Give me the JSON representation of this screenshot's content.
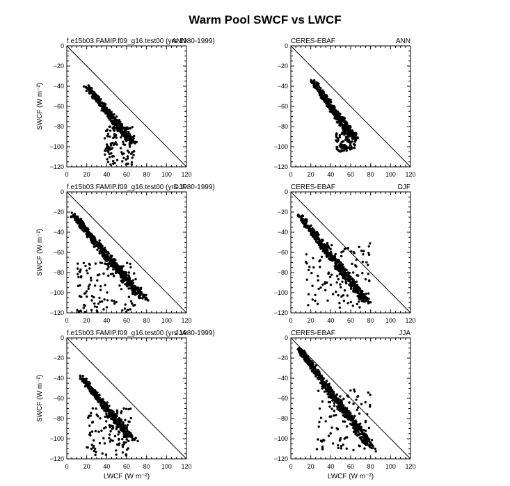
{
  "title": "Warm Pool SWCF vs LWCF",
  "colors": {
    "points": "#000000",
    "frame": "#000000",
    "background": "#ffffff"
  },
  "chart_data": [
    {
      "type": "scatter",
      "left_label": "f.e15b03.FAMIP.f09_g16.test00 (yrs 1980-1999)",
      "right_label": "ANN",
      "xlabel": "",
      "ylabel": "SWCF (W m⁻²)",
      "xlim": [
        0,
        120
      ],
      "ylim": [
        -120,
        0
      ],
      "xticks": [
        0,
        20,
        40,
        60,
        80,
        100,
        120
      ],
      "yticks": [
        0,
        -20,
        -40,
        -60,
        -80,
        -100,
        -120
      ],
      "reference_line": "1:1",
      "grid": false,
      "cloud": {
        "x_from": 20,
        "y_from": -40,
        "x_to": 65,
        "y_to": -95,
        "width": 15,
        "tail_x": [
          38,
          68
        ],
        "tail_y": [
          -80,
          -118
        ],
        "n": 520
      }
    },
    {
      "type": "scatter",
      "left_label": "CERES-EBAF",
      "right_label": "ANN",
      "xlabel": "",
      "ylabel": "",
      "xlim": [
        0,
        120
      ],
      "ylim": [
        -120,
        0
      ],
      "xticks": [
        0,
        20,
        40,
        60,
        80,
        100,
        120
      ],
      "yticks": [
        0,
        -20,
        -40,
        -60,
        -80,
        -100,
        -120
      ],
      "reference_line": "1:1",
      "grid": false,
      "cloud": {
        "x_from": 22,
        "y_from": -35,
        "x_to": 62,
        "y_to": -90,
        "width": 14,
        "tail_x": [
          45,
          65
        ],
        "tail_y": [
          -85,
          -105
        ],
        "n": 480
      }
    },
    {
      "type": "scatter",
      "left_label": "f.e15b03.FAMIP.f09_g16.test00 (yrs 1980-1999)",
      "right_label": "DJF",
      "xlabel": "",
      "ylabel": "SWCF (W m⁻²)",
      "xlim": [
        0,
        120
      ],
      "ylim": [
        -120,
        0
      ],
      "xticks": [
        0,
        20,
        40,
        60,
        80,
        100,
        120
      ],
      "yticks": [
        0,
        -20,
        -40,
        -60,
        -80,
        -100,
        -120
      ],
      "reference_line": "1:1",
      "grid": false,
      "cloud": {
        "x_from": 6,
        "y_from": -22,
        "x_to": 75,
        "y_to": -105,
        "width": 18,
        "tail_x": [
          10,
          70
        ],
        "tail_y": [
          -70,
          -120
        ],
        "n": 650
      }
    },
    {
      "type": "scatter",
      "left_label": "CERES-EBAF",
      "right_label": "DJF",
      "xlabel": "",
      "ylabel": "",
      "xlim": [
        0,
        120
      ],
      "ylim": [
        -120,
        0
      ],
      "xticks": [
        0,
        20,
        40,
        60,
        80,
        100,
        120
      ],
      "yticks": [
        0,
        -20,
        -40,
        -60,
        -80,
        -100,
        -120
      ],
      "reference_line": "1:1",
      "grid": false,
      "cloud": {
        "x_from": 8,
        "y_from": -22,
        "x_to": 75,
        "y_to": -108,
        "width": 16,
        "tail_x": [
          15,
          80
        ],
        "tail_y": [
          -50,
          -115
        ],
        "n": 620
      }
    },
    {
      "type": "scatter",
      "left_label": "f.e15b03.FAMIP.f09_g16.test00 (yrs 1980-1999)",
      "right_label": "JJA",
      "xlabel": "LWCF (W m⁻²)",
      "ylabel": "SWCF (W m⁻²)",
      "xlim": [
        0,
        120
      ],
      "ylim": [
        -120,
        0
      ],
      "xticks": [
        0,
        20,
        40,
        60,
        80,
        100,
        120
      ],
      "yticks": [
        0,
        -20,
        -40,
        -60,
        -80,
        -100,
        -120
      ],
      "reference_line": "1:1",
      "grid": false,
      "cloud": {
        "x_from": 14,
        "y_from": -38,
        "x_to": 65,
        "y_to": -100,
        "width": 14,
        "tail_x": [
          20,
          65
        ],
        "tail_y": [
          -70,
          -118
        ],
        "n": 520
      }
    },
    {
      "type": "scatter",
      "left_label": "CERES-EBAF",
      "right_label": "JJA",
      "xlabel": "LWCF (W m⁻²)",
      "ylabel": "",
      "xlim": [
        0,
        120
      ],
      "ylim": [
        -120,
        0
      ],
      "xticks": [
        0,
        20,
        40,
        60,
        80,
        100,
        120
      ],
      "yticks": [
        0,
        -20,
        -40,
        -60,
        -80,
        -100,
        -120
      ],
      "reference_line": "1:1",
      "grid": false,
      "cloud": {
        "x_from": 8,
        "y_from": -10,
        "x_to": 80,
        "y_to": -108,
        "width": 16,
        "tail_x": [
          25,
          80
        ],
        "tail_y": [
          -50,
          -112
        ],
        "n": 620
      }
    }
  ]
}
